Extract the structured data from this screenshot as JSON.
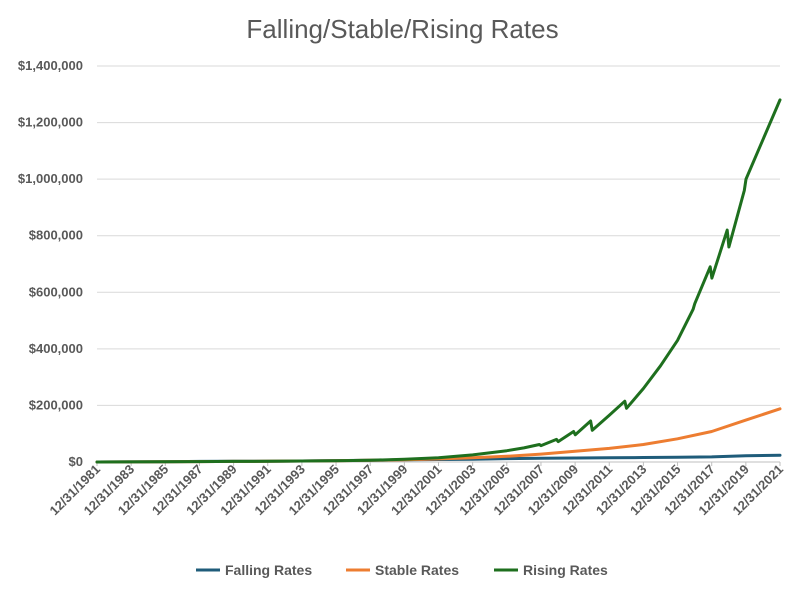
{
  "chart_data": {
    "type": "line",
    "title": "Falling/Stable/Rising Rates",
    "xlabel": "",
    "ylabel": "",
    "ylim": [
      0,
      1400000
    ],
    "y_ticks": [
      "$0",
      "$200,000",
      "$400,000",
      "$600,000",
      "$800,000",
      "$1,000,000",
      "$1,200,000",
      "$1,400,000"
    ],
    "y_tick_values": [
      0,
      200000,
      400000,
      600000,
      800000,
      1000000,
      1200000,
      1400000
    ],
    "xlim": [
      1981.99,
      2021.99
    ],
    "x_ticks": [
      "12/31/1981",
      "12/31/1983",
      "12/31/1985",
      "12/31/1987",
      "12/31/1989",
      "12/31/1991",
      "12/31/1993",
      "12/31/1995",
      "12/31/1997",
      "12/31/1999",
      "12/31/2001",
      "12/31/2003",
      "12/31/2005",
      "12/31/2007",
      "12/31/2009",
      "12/31/2011",
      "12/31/2013",
      "12/31/2015",
      "12/31/2017",
      "12/31/2019",
      "12/31/2021"
    ],
    "x_tick_values": [
      1981.99,
      1983.99,
      1985.99,
      1987.99,
      1989.99,
      1991.99,
      1993.99,
      1995.99,
      1997.99,
      1999.99,
      2001.99,
      2003.99,
      2005.99,
      2007.99,
      2009.99,
      2011.99,
      2013.99,
      2015.99,
      2017.99,
      2019.99,
      2021.99
    ],
    "grid": true,
    "legend_position": "bottom",
    "series": [
      {
        "name": "Falling Rates",
        "color": "#1F5C7A",
        "x": [
          1981.99,
          1983.99,
          1985.99,
          1987.99,
          1989.99,
          1991.99,
          1993.99,
          1995.99,
          1997.99,
          1999.99,
          2001.99,
          2003.99,
          2005.99,
          2007.99,
          2009.99,
          2011.99,
          2013.99,
          2015.99,
          2017.99,
          2019.99,
          2021.99
        ],
        "y": [
          0,
          500,
          1200,
          2000,
          2500,
          3000,
          3500,
          5000,
          6000,
          8000,
          9000,
          10000,
          12000,
          13000,
          14000,
          15000,
          16000,
          17000,
          18000,
          22000,
          24000
        ]
      },
      {
        "name": "Stable Rates",
        "color": "#ED7D31",
        "x": [
          1981.99,
          1983.99,
          1985.99,
          1987.99,
          1989.99,
          1991.99,
          1993.99,
          1995.99,
          1997.99,
          1999.99,
          2001.99,
          2003.99,
          2005.99,
          2007.99,
          2009.99,
          2011.99,
          2013.99,
          2015.99,
          2017.99,
          2019.99,
          2021.99
        ],
        "y": [
          0,
          500,
          1000,
          1500,
          2000,
          2500,
          3500,
          4500,
          6000,
          8000,
          11000,
          15000,
          20000,
          28000,
          38000,
          48000,
          62000,
          82000,
          108000,
          148000,
          188000
        ]
      },
      {
        "name": "Rising Rates",
        "color": "#1E6F1E",
        "x": [
          1981.99,
          1983.99,
          1985.99,
          1987.99,
          1989.99,
          1991.99,
          1993.99,
          1995.99,
          1997.99,
          1999.99,
          2001.99,
          2003.99,
          2005.99,
          2006.99,
          2007.9,
          2007.99,
          2008.9,
          2009.0,
          2009.9,
          2010.0,
          2010.9,
          2011.0,
          2011.99,
          2012.9,
          2013.0,
          2013.99,
          2014.99,
          2015.99,
          2016.9,
          2017.0,
          2017.9,
          2018.0,
          2018.9,
          2019.0,
          2019.9,
          2020.0,
          2021.99
        ],
        "y": [
          0,
          500,
          1000,
          1500,
          2000,
          2500,
          3500,
          4500,
          6000,
          10000,
          15000,
          25000,
          40000,
          50000,
          62000,
          58000,
          80000,
          72000,
          108000,
          96000,
          145000,
          112000,
          165000,
          215000,
          190000,
          260000,
          340000,
          430000,
          540000,
          560000,
          690000,
          650000,
          820000,
          760000,
          960000,
          1000000,
          1280000
        ]
      }
    ]
  }
}
